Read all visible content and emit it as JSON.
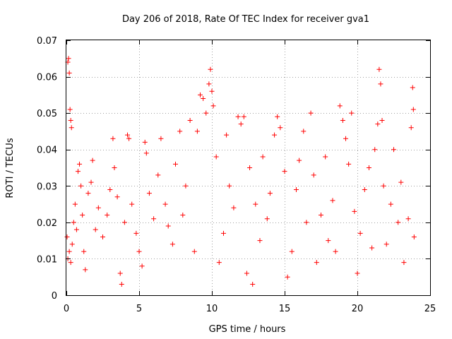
{
  "chart_data": {
    "type": "scatter",
    "title": "Day 206 of 2018, Rate Of TEC Index for receiver gva1",
    "xlabel": "GPS time / hours",
    "ylabel": "ROTI / TECUs",
    "xlim": [
      0,
      25
    ],
    "ylim": [
      0,
      0.07
    ],
    "xticks": [
      0,
      5,
      10,
      15,
      20,
      25
    ],
    "xtick_labels": [
      "0",
      "5",
      "10",
      "15",
      "20",
      "25"
    ],
    "yticks": [
      0,
      0.01,
      0.02,
      0.03,
      0.04,
      0.05,
      0.06,
      0.07
    ],
    "ytick_labels": [
      "0",
      "0.01",
      "0.02",
      "0.03",
      "0.04",
      "0.05",
      "0.06",
      "0.07"
    ],
    "grid": true,
    "marker": "+",
    "color": "#ff0000",
    "series": [
      {
        "name": "ROTI",
        "points": [
          [
            0.05,
            0.016
          ],
          [
            0.1,
            0.064
          ],
          [
            0.15,
            0.065
          ],
          [
            0.2,
            0.061
          ],
          [
            0.25,
            0.051
          ],
          [
            0.3,
            0.048
          ],
          [
            0.35,
            0.046
          ],
          [
            0.1,
            0.01
          ],
          [
            0.2,
            0.012
          ],
          [
            0.3,
            0.009
          ],
          [
            0.4,
            0.014
          ],
          [
            0.5,
            0.02
          ],
          [
            0.6,
            0.025
          ],
          [
            0.7,
            0.018
          ],
          [
            0.8,
            0.034
          ],
          [
            0.9,
            0.036
          ],
          [
            1.0,
            0.03
          ],
          [
            1.1,
            0.022
          ],
          [
            1.2,
            0.012
          ],
          [
            1.3,
            0.007
          ],
          [
            1.5,
            0.028
          ],
          [
            1.7,
            0.031
          ],
          [
            1.8,
            0.037
          ],
          [
            2.0,
            0.018
          ],
          [
            2.2,
            0.024
          ],
          [
            2.5,
            0.016
          ],
          [
            2.8,
            0.022
          ],
          [
            3.0,
            0.029
          ],
          [
            3.2,
            0.043
          ],
          [
            3.3,
            0.035
          ],
          [
            3.5,
            0.027
          ],
          [
            3.7,
            0.006
          ],
          [
            3.8,
            0.003
          ],
          [
            4.0,
            0.02
          ],
          [
            4.2,
            0.044
          ],
          [
            4.3,
            0.043
          ],
          [
            4.5,
            0.025
          ],
          [
            4.8,
            0.017
          ],
          [
            5.0,
            0.012
          ],
          [
            5.2,
            0.008
          ],
          [
            5.4,
            0.042
          ],
          [
            5.5,
            0.039
          ],
          [
            5.7,
            0.028
          ],
          [
            6.0,
            0.021
          ],
          [
            6.3,
            0.033
          ],
          [
            6.5,
            0.043
          ],
          [
            6.8,
            0.025
          ],
          [
            7.0,
            0.019
          ],
          [
            7.3,
            0.014
          ],
          [
            7.5,
            0.036
          ],
          [
            7.8,
            0.045
          ],
          [
            8.0,
            0.022
          ],
          [
            8.2,
            0.03
          ],
          [
            8.5,
            0.048
          ],
          [
            8.8,
            0.012
          ],
          [
            9.0,
            0.045
          ],
          [
            9.2,
            0.055
          ],
          [
            9.4,
            0.054
          ],
          [
            9.6,
            0.05
          ],
          [
            9.8,
            0.058
          ],
          [
            9.9,
            0.062
          ],
          [
            10.0,
            0.056
          ],
          [
            10.1,
            0.052
          ],
          [
            10.3,
            0.038
          ],
          [
            10.5,
            0.009
          ],
          [
            10.8,
            0.017
          ],
          [
            11.0,
            0.044
          ],
          [
            11.2,
            0.03
          ],
          [
            11.5,
            0.024
          ],
          [
            11.8,
            0.049
          ],
          [
            12.0,
            0.047
          ],
          [
            12.2,
            0.049
          ],
          [
            12.4,
            0.006
          ],
          [
            12.6,
            0.035
          ],
          [
            12.8,
            0.003
          ],
          [
            13.0,
            0.025
          ],
          [
            13.3,
            0.015
          ],
          [
            13.5,
            0.038
          ],
          [
            13.8,
            0.021
          ],
          [
            14.0,
            0.028
          ],
          [
            14.3,
            0.044
          ],
          [
            14.5,
            0.049
          ],
          [
            14.7,
            0.046
          ],
          [
            15.0,
            0.034
          ],
          [
            15.2,
            0.005
          ],
          [
            15.5,
            0.012
          ],
          [
            15.8,
            0.029
          ],
          [
            16.0,
            0.037
          ],
          [
            16.3,
            0.045
          ],
          [
            16.5,
            0.02
          ],
          [
            16.8,
            0.05
          ],
          [
            17.0,
            0.033
          ],
          [
            17.2,
            0.009
          ],
          [
            17.5,
            0.022
          ],
          [
            17.8,
            0.038
          ],
          [
            18.0,
            0.015
          ],
          [
            18.3,
            0.026
          ],
          [
            18.5,
            0.012
          ],
          [
            18.8,
            0.052
          ],
          [
            19.0,
            0.048
          ],
          [
            19.2,
            0.043
          ],
          [
            19.4,
            0.036
          ],
          [
            19.6,
            0.05
          ],
          [
            19.8,
            0.023
          ],
          [
            20.0,
            0.006
          ],
          [
            20.2,
            0.017
          ],
          [
            20.5,
            0.029
          ],
          [
            20.8,
            0.035
          ],
          [
            21.0,
            0.013
          ],
          [
            21.2,
            0.04
          ],
          [
            21.4,
            0.047
          ],
          [
            21.5,
            0.062
          ],
          [
            21.6,
            0.058
          ],
          [
            21.7,
            0.048
          ],
          [
            21.8,
            0.03
          ],
          [
            22.0,
            0.014
          ],
          [
            22.3,
            0.025
          ],
          [
            22.5,
            0.04
          ],
          [
            22.8,
            0.02
          ],
          [
            23.0,
            0.031
          ],
          [
            23.2,
            0.009
          ],
          [
            23.5,
            0.021
          ],
          [
            23.7,
            0.046
          ],
          [
            23.8,
            0.057
          ],
          [
            23.85,
            0.051
          ],
          [
            23.9,
            0.016
          ]
        ]
      }
    ]
  }
}
